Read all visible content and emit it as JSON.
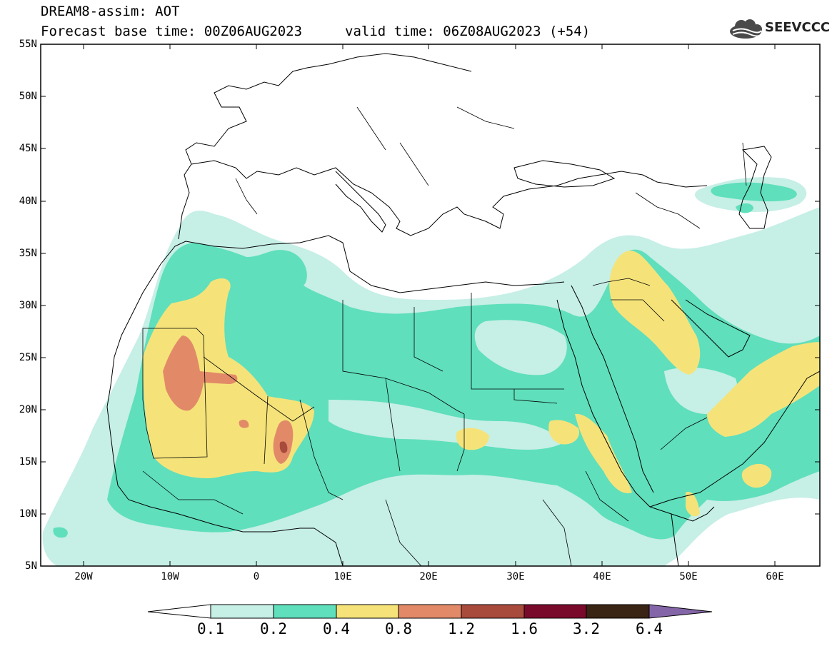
{
  "header": {
    "title_line1": "DREAM8-assim: AOT",
    "title_line2": "Forecast base time: 00Z06AUG2023",
    "valid_time": "valid time: 06Z08AUG2023 (+54)",
    "logo_text": "SEEVCCC",
    "logo_icon": "cloud-logo-icon"
  },
  "map": {
    "lon_range": [
      -25,
      65
    ],
    "lat_range": [
      5,
      55
    ],
    "lat_ticks": [
      "55N",
      "50N",
      "45N",
      "40N",
      "35N",
      "30N",
      "25N",
      "20N",
      "15N",
      "10N",
      "5N"
    ],
    "lon_ticks": [
      "20W",
      "10W",
      "0",
      "10E",
      "20E",
      "30E",
      "40E",
      "50E",
      "60E"
    ],
    "field": "Aerosol optical thickness (dust)",
    "projection": "cylindrical equidistant"
  },
  "colorbar": {
    "levels": [
      "0.1",
      "0.2",
      "0.4",
      "0.8",
      "1.2",
      "1.6",
      "3.2",
      "6.4"
    ],
    "colors": [
      "#ffffff",
      "#c6efe6",
      "#5fdfbc",
      "#f5e37a",
      "#e28a68",
      "#a84a3c",
      "#7a0a2c",
      "#3a2414",
      "#8466a8"
    ]
  }
}
